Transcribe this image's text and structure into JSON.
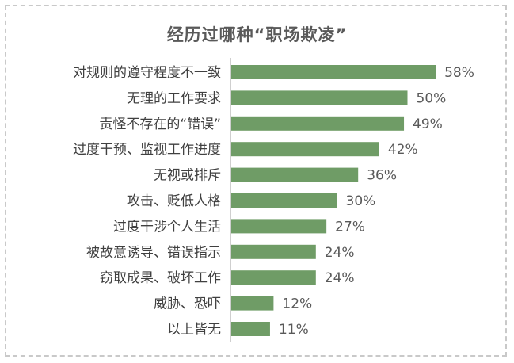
{
  "chart_data": {
    "type": "bar",
    "orientation": "horizontal",
    "title": "经历过哪种“职场欺凌”",
    "categories": [
      "对规则的遵守程度不一致",
      "无理的工作要求",
      "责怪不存在的“错误”",
      "过度干预、监视工作进度",
      "无视或排斥",
      "攻击、贬低人格",
      "过度干涉个人生活",
      "被故意诱导、错误指示",
      "窃取成果、破坏工作",
      "威胁、恐吓",
      "以上皆无"
    ],
    "values": [
      58,
      50,
      49,
      42,
      36,
      30,
      27,
      24,
      24,
      12,
      11
    ],
    "value_labels": [
      "58%",
      "50%",
      "49%",
      "42%",
      "36%",
      "30%",
      "27%",
      "24%",
      "24%",
      "12%",
      "11%"
    ],
    "unit": "%",
    "bar_color": "#6f9c66",
    "axis_line_color": "#bfbfbf",
    "grid": false,
    "legend": "none"
  }
}
